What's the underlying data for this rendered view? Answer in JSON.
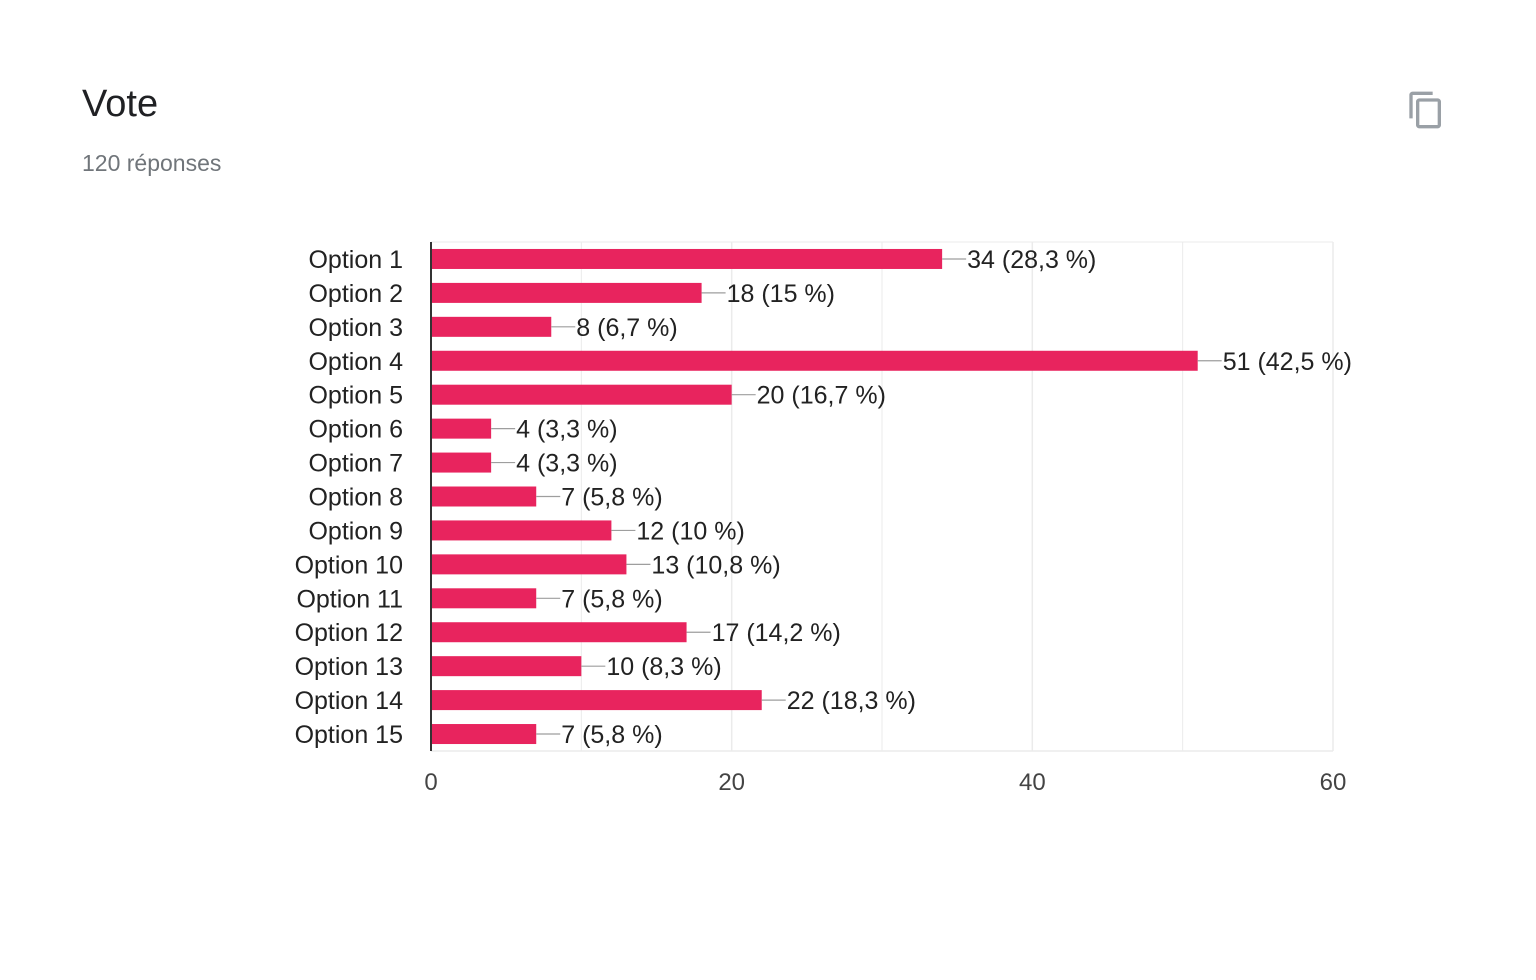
{
  "header": {
    "title": "Vote",
    "subtitle": "120 réponses",
    "copy_icon": "copy-icon"
  },
  "colors": {
    "bar": "#e8245e",
    "grid": "#ebebeb",
    "axis": "#333333",
    "label": "#222222",
    "connector": "#9e9e9e"
  },
  "chart_data": {
    "type": "bar",
    "orientation": "horizontal",
    "categories": [
      "Option 1",
      "Option 2",
      "Option 3",
      "Option 4",
      "Option 5",
      "Option 6",
      "Option 7",
      "Option 8",
      "Option 9",
      "Option 10",
      "Option 11",
      "Option 12",
      "Option 13",
      "Option 14",
      "Option 15"
    ],
    "values": [
      34,
      18,
      8,
      51,
      20,
      4,
      4,
      7,
      12,
      13,
      7,
      17,
      10,
      22,
      7
    ],
    "data_labels": [
      "34 (28,3 %)",
      "18 (15 %)",
      "8 (6,7 %)",
      "51 (42,5 %)",
      "20 (16,7 %)",
      "4 (3,3 %)",
      "4 (3,3 %)",
      "7 (5,8 %)",
      "12 (10 %)",
      "13 (10,8 %)",
      "7 (5,8 %)",
      "17 (14,2 %)",
      "10 (8,3 %)",
      "22 (18,3 %)",
      "7 (5,8 %)"
    ],
    "xlim": [
      0,
      60
    ],
    "xticks": [
      "0",
      "20",
      "40",
      "60"
    ],
    "xtick_values": [
      0,
      20,
      40,
      60
    ],
    "minor_grid_values": [
      10,
      30,
      50
    ],
    "grid": true,
    "legend": "none"
  }
}
